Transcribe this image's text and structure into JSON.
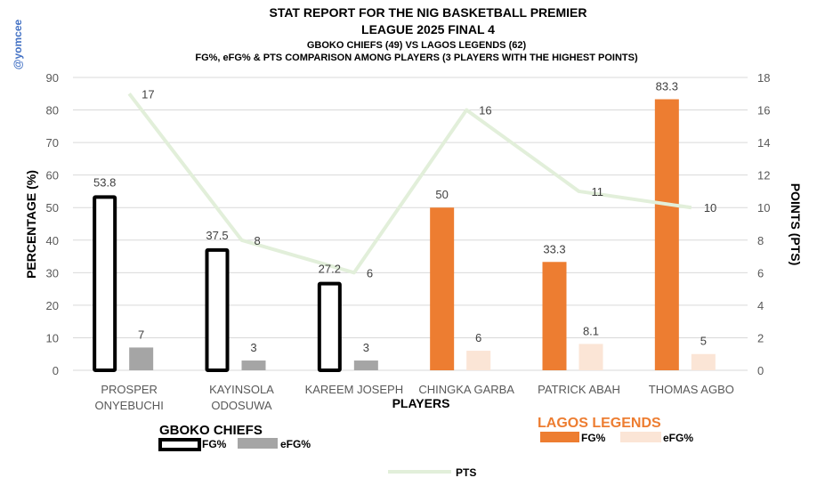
{
  "watermark": "@yomcee",
  "chart_data": {
    "type": "bar",
    "title_line1": "STAT REPORT FOR THE NIG BASKETBALL PREMIER",
    "title_line2": "LEAGUE 2025 FINAL 4",
    "subtitle1": "GBOKO CHIEFS (49) VS LAGOS LEGENDS (62)",
    "subtitle2": "FG%, eFG% & PTS COMPARISON AMONG PLAYERS (3 PLAYERS WITH THE HIGHEST POINTS)",
    "xlabel": "PLAYERS",
    "ylabel": "PERCENTAGE (%)",
    "y2label": "POINTS (PTS)",
    "ylim": [
      0,
      90
    ],
    "y2lim": [
      0,
      18
    ],
    "yticks": [
      "0",
      "10",
      "20",
      "30",
      "40",
      "50",
      "60",
      "70",
      "80",
      "90"
    ],
    "y2ticks": [
      "0",
      "2",
      "4",
      "6",
      "8",
      "10",
      "12",
      "14",
      "16",
      "18"
    ],
    "categories": [
      [
        "PROSPER",
        "ONYEBUCHI"
      ],
      [
        "KAYINSOLA",
        "ODOSUWA"
      ],
      [
        "KAREEM JOSEPH"
      ],
      [
        "CHINGKA GARBA"
      ],
      [
        "PATRICK ABAH"
      ],
      [
        "THOMAS AGBO"
      ]
    ],
    "teams": [
      "GBOKO CHIEFS",
      "GBOKO CHIEFS",
      "GBOKO CHIEFS",
      "LAGOS LEGENDS",
      "LAGOS LEGENDS",
      "LAGOS LEGENDS"
    ],
    "series": [
      {
        "name": "FG%",
        "axis": "left",
        "values": [
          53.8,
          37.5,
          27.2,
          50,
          33.3,
          83.3
        ],
        "labels": [
          "53.8",
          "37.5",
          "27.2",
          "50",
          "33.3",
          "83.3"
        ]
      },
      {
        "name": "eFG%",
        "axis": "left",
        "values": [
          7,
          3,
          3,
          6,
          8.1,
          5
        ],
        "labels": [
          "7",
          "3",
          "3",
          "6",
          "8.1",
          "5"
        ]
      },
      {
        "name": "PTS",
        "axis": "right",
        "type": "line",
        "values": [
          17,
          8,
          6,
          16,
          11,
          10
        ],
        "labels": [
          "17",
          "8",
          "6",
          "16",
          "11",
          "10"
        ]
      }
    ],
    "colors": {
      "gboko_fg_outline": "#000000",
      "gboko_efg": "#A5A5A5",
      "lagos_fg": "#ED7D31",
      "lagos_efg": "#FBE5D6",
      "pts_line": "#E2EFDA",
      "lagos_title": "#ED7D31",
      "watermark": "#4472C4"
    }
  },
  "legend": {
    "gboko": {
      "title": "GBOKO CHIEFS",
      "fg": "FG%",
      "efg": "eFG%"
    },
    "lagos": {
      "title": "LAGOS LEGENDS",
      "fg": "FG%",
      "efg": "eFG%"
    },
    "pts": "PTS"
  }
}
